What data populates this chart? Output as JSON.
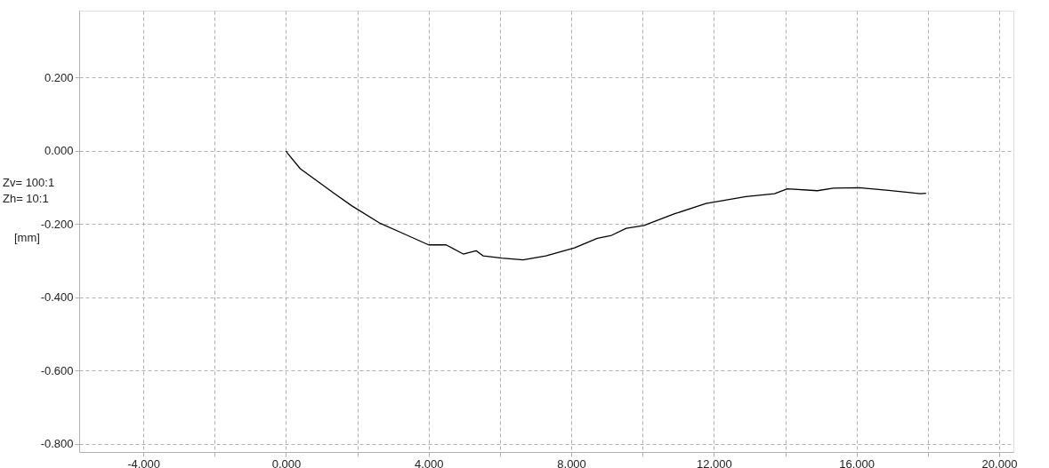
{
  "chart_data": {
    "type": "line",
    "ylabel": "[mm]",
    "annotations": [
      "Zv= 100:1",
      "Zh= 10:1"
    ],
    "series": [
      {
        "color": "#000000",
        "x": [
          0,
          0.04,
          0.4,
          1.36,
          1.84,
          2.64,
          3.29,
          4.0,
          4.49,
          4.97,
          5.33,
          5.53,
          6.05,
          6.65,
          7.29,
          8.09,
          8.73,
          9.13,
          9.54,
          10.04,
          10.9,
          11.78,
          12.9,
          13.7,
          14.06,
          14.9,
          15.35,
          16.07,
          16.9,
          17.79,
          17.95
        ],
        "values": [
          0,
          -0.006,
          -0.049,
          -0.117,
          -0.15,
          -0.198,
          -0.226,
          -0.257,
          -0.257,
          -0.282,
          -0.273,
          -0.287,
          -0.293,
          -0.298,
          -0.287,
          -0.265,
          -0.239,
          -0.231,
          -0.212,
          -0.204,
          -0.172,
          -0.144,
          -0.125,
          -0.117,
          -0.104,
          -0.109,
          -0.102,
          -0.101,
          -0.108,
          -0.117,
          -0.116
        ]
      }
    ],
    "xlim": [
      -5.8,
      20.4
    ],
    "ylim": [
      -0.823,
      0.383
    ],
    "xticks": [
      {
        "value": -4,
        "label": "-4.000"
      },
      {
        "value": -2,
        "label": null
      },
      {
        "value": 0,
        "label": "0.000"
      },
      {
        "value": 2,
        "label": null
      },
      {
        "value": 4,
        "label": "4.000"
      },
      {
        "value": 6,
        "label": null
      },
      {
        "value": 8,
        "label": "8.000"
      },
      {
        "value": 10,
        "label": null
      },
      {
        "value": 12,
        "label": "12.000"
      },
      {
        "value": 14,
        "label": null
      },
      {
        "value": 16,
        "label": "16.000"
      },
      {
        "value": 18,
        "label": null
      },
      {
        "value": 20,
        "label": "20.000"
      }
    ],
    "yticks": [
      {
        "value": -0.8,
        "label": "-0.800"
      },
      {
        "value": -0.6,
        "label": "-0.600"
      },
      {
        "value": -0.4,
        "label": "-0.400"
      },
      {
        "value": -0.2,
        "label": "-0.200"
      },
      {
        "value": 0,
        "label": "0.000"
      },
      {
        "value": 0.2,
        "label": "0.200"
      }
    ],
    "grid": true,
    "marker": "none",
    "line_style": "solid"
  }
}
